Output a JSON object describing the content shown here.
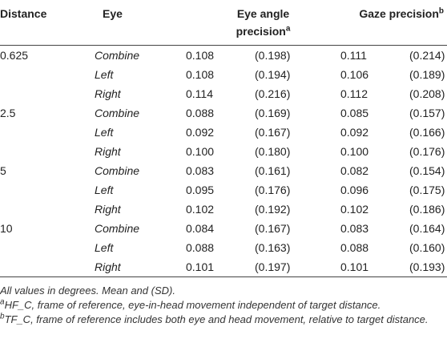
{
  "table": {
    "header": {
      "distance": "Distance",
      "eye": "Eye",
      "eye_angle": {
        "text": "Eye angle precision",
        "note": "a"
      },
      "gaze": {
        "text": "Gaze precision",
        "note": "b"
      }
    },
    "rows": [
      [
        "0.625",
        "Combine",
        "0.108",
        "(0.198)",
        "0.111",
        "(0.214)"
      ],
      [
        null,
        "Left",
        "0.108",
        "(0.194)",
        "0.106",
        "(0.189)"
      ],
      [
        null,
        "Right",
        "0.114",
        "(0.216)",
        "0.112",
        "(0.208)"
      ],
      [
        "2.5",
        "Combine",
        "0.088",
        "(0.169)",
        "0.085",
        "(0.157)"
      ],
      [
        null,
        "Left",
        "0.092",
        "(0.167)",
        "0.092",
        "(0.166)"
      ],
      [
        null,
        "Right",
        "0.100",
        "(0.180)",
        "0.100",
        "(0.176)"
      ],
      [
        "5",
        "Combine",
        "0.083",
        "(0.161)",
        "0.082",
        "(0.154)"
      ],
      [
        null,
        "Left",
        "0.095",
        "(0.176)",
        "0.096",
        "(0.175)"
      ],
      [
        null,
        "Right",
        "0.102",
        "(0.192)",
        "0.102",
        "(0.186)"
      ],
      [
        "10",
        "Combine",
        "0.084",
        "(0.167)",
        "0.083",
        "(0.164)"
      ],
      [
        null,
        "Left",
        "0.088",
        "(0.163)",
        "0.088",
        "(0.160)"
      ],
      [
        null,
        "Right",
        "0.101",
        "(0.197)",
        "0.101",
        "(0.193)"
      ]
    ]
  },
  "notes": {
    "general": "All values in degrees. Mean and (SD).",
    "footnotes": [
      {
        "marker": "a",
        "term": "HF_C",
        "text": ", frame of reference, eye-in-head movement independent of target distance."
      },
      {
        "marker": "b",
        "term": "TF_C",
        "text": ", frame of reference includes both eye and head movement, relative to target distance."
      }
    ]
  }
}
